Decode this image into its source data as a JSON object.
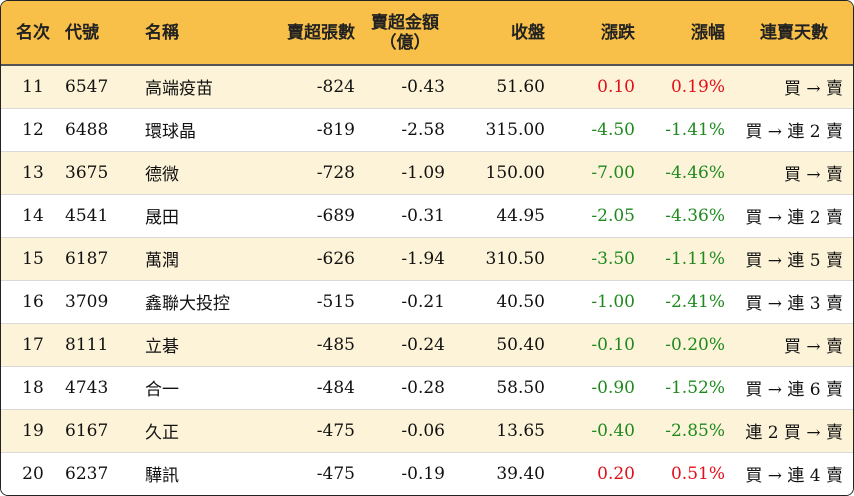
{
  "headers": {
    "rank": "名次",
    "code": "代號",
    "name": "名稱",
    "net_sell_lots": "賣超張數",
    "net_sell_amount_line1": "賣超金額",
    "net_sell_amount_line2": "（億）",
    "close": "收盤",
    "change": "漲跌",
    "change_pct": "漲幅",
    "sell_days": "連賣天數"
  },
  "rows": [
    {
      "rank": "11",
      "code": "6547",
      "name": "高端疫苗",
      "net_sell_lots": "-824",
      "net_sell_amount": "-0.43",
      "close": "51.60",
      "change": "0.10",
      "change_pct": "0.19%",
      "trend": "up",
      "sell_days": "買 → 賣"
    },
    {
      "rank": "12",
      "code": "6488",
      "name": "環球晶",
      "net_sell_lots": "-819",
      "net_sell_amount": "-2.58",
      "close": "315.00",
      "change": "-4.50",
      "change_pct": "-1.41%",
      "trend": "down",
      "sell_days": "買 → 連 2 賣"
    },
    {
      "rank": "13",
      "code": "3675",
      "name": "德微",
      "net_sell_lots": "-728",
      "net_sell_amount": "-1.09",
      "close": "150.00",
      "change": "-7.00",
      "change_pct": "-4.46%",
      "trend": "down",
      "sell_days": "買 → 賣"
    },
    {
      "rank": "14",
      "code": "4541",
      "name": "晟田",
      "net_sell_lots": "-689",
      "net_sell_amount": "-0.31",
      "close": "44.95",
      "change": "-2.05",
      "change_pct": "-4.36%",
      "trend": "down",
      "sell_days": "買 → 連 2 賣"
    },
    {
      "rank": "15",
      "code": "6187",
      "name": "萬潤",
      "net_sell_lots": "-626",
      "net_sell_amount": "-1.94",
      "close": "310.50",
      "change": "-3.50",
      "change_pct": "-1.11%",
      "trend": "down",
      "sell_days": "買 → 連 5 賣"
    },
    {
      "rank": "16",
      "code": "3709",
      "name": "鑫聯大投控",
      "net_sell_lots": "-515",
      "net_sell_amount": "-0.21",
      "close": "40.50",
      "change": "-1.00",
      "change_pct": "-2.41%",
      "trend": "down",
      "sell_days": "買 → 連 3 賣"
    },
    {
      "rank": "17",
      "code": "8111",
      "name": "立碁",
      "net_sell_lots": "-485",
      "net_sell_amount": "-0.24",
      "close": "50.40",
      "change": "-0.10",
      "change_pct": "-0.20%",
      "trend": "down",
      "sell_days": "買 → 賣"
    },
    {
      "rank": "18",
      "code": "4743",
      "name": "合一",
      "net_sell_lots": "-484",
      "net_sell_amount": "-0.28",
      "close": "58.50",
      "change": "-0.90",
      "change_pct": "-1.52%",
      "trend": "down",
      "sell_days": "買 → 連 6 賣"
    },
    {
      "rank": "19",
      "code": "6167",
      "name": "久正",
      "net_sell_lots": "-475",
      "net_sell_amount": "-0.06",
      "close": "13.65",
      "change": "-0.40",
      "change_pct": "-2.85%",
      "trend": "down",
      "sell_days": "連 2 買 → 賣"
    },
    {
      "rank": "20",
      "code": "6237",
      "name": "驊訊",
      "net_sell_lots": "-475",
      "net_sell_amount": "-0.19",
      "close": "39.40",
      "change": "0.20",
      "change_pct": "0.51%",
      "trend": "up",
      "sell_days": "買 → 連 4 賣"
    }
  ],
  "colors": {
    "header_bg": "#f8c048",
    "odd_row_bg": "#fdf3d8",
    "even_row_bg": "#ffffff",
    "up": "#e0101a",
    "down": "#1e8a1e"
  }
}
